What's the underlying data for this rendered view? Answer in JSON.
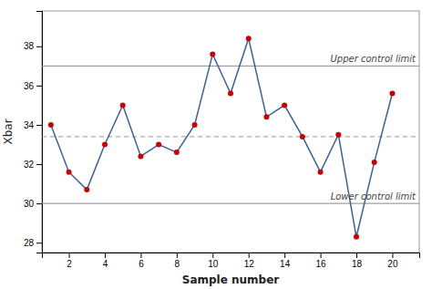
{
  "chart_data": {
    "type": "line",
    "x": [
      1,
      2,
      3,
      4,
      5,
      6,
      7,
      8,
      9,
      10,
      11,
      12,
      13,
      14,
      15,
      16,
      17,
      18,
      19,
      20
    ],
    "series": [
      {
        "color": "#3a5fa0",
        "marker": "circle",
        "colors": [
          "#CC0000",
          "#CC0000",
          "#CC0000",
          "#CC0000",
          "#CC0000",
          "#CC0000",
          "#CC0000",
          "#CC0000",
          "#CC0000",
          "#CC0000",
          "#CC0000",
          "#CC0000",
          "#CC0000",
          "#CC0000",
          "#CC0000",
          "#CC0000",
          "#CC0000",
          "#CC0000",
          "#CC0000",
          "#CC0000"
        ],
        "values": [
          34.0,
          31.6,
          30.7,
          33.0,
          35.0,
          32.4,
          33.0,
          32.6,
          34.0,
          37.6,
          35.6,
          38.4,
          34.4,
          35.0,
          33.4,
          31.6,
          33.5,
          28.3,
          32.1,
          35.6
        ]
      }
    ],
    "reference_lines": [
      {
        "value": 37.0,
        "label": "Upper control limit",
        "color": "#888888",
        "line_style": "solid"
      },
      {
        "value": 30.0,
        "label": "Lower control limit",
        "color": "#888888",
        "line_style": "solid"
      },
      {
        "value": 33.4,
        "color": "#999999",
        "line_style": "dashed"
      }
    ],
    "xlabel": "Sample number",
    "ylabel": "Xbar",
    "xlim": [
      0.5,
      21.5
    ],
    "ylim": [
      27.5,
      39.8
    ],
    "xticks": [
      2,
      4,
      6,
      8,
      10,
      12,
      14,
      16,
      18,
      20
    ],
    "yticks": [
      28,
      30,
      32,
      34,
      36,
      38
    ],
    "grid": false
  }
}
